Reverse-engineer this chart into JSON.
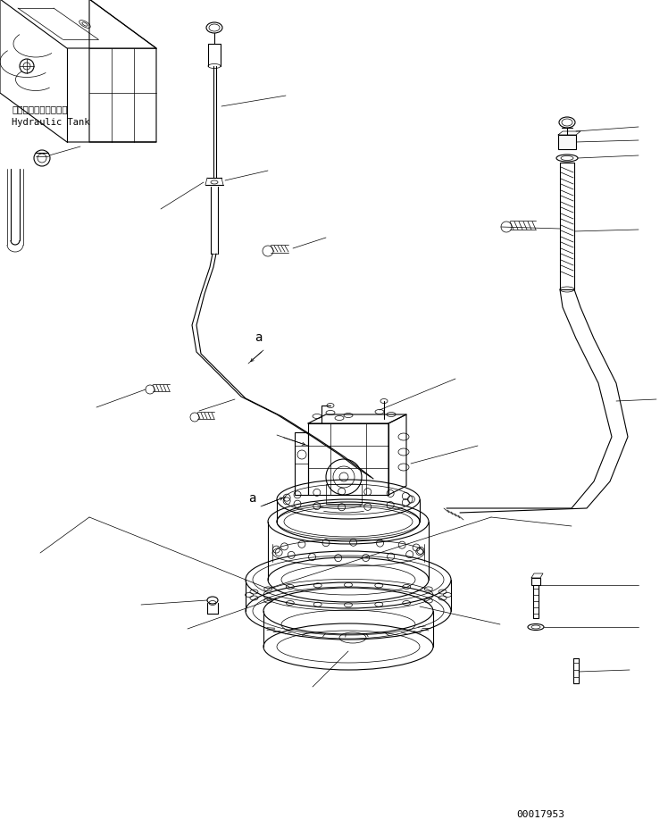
{
  "bg_color": "#ffffff",
  "line_color": "#000000",
  "text_color": "#000000",
  "part_number": "00017953",
  "label_hydraulic_jp": "ハイドロリックタンク",
  "label_hydraulic_en": "Hydraulic Tank",
  "label_a1": "a",
  "label_a2": "a",
  "fig_width": 7.48,
  "fig_height": 9.28,
  "dpi": 100
}
